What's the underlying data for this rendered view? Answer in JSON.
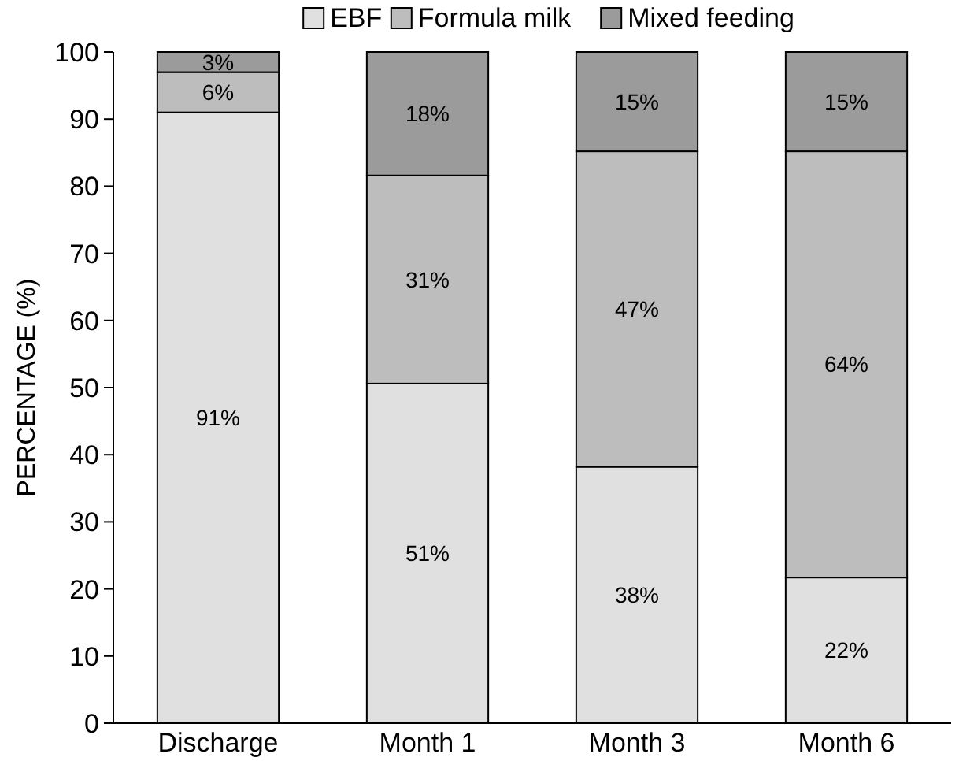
{
  "chart_data": {
    "type": "bar",
    "stacked": true,
    "ylabel": "PERCENTAGE (%)",
    "categories": [
      "Discharge",
      "Month 1",
      "Month 3",
      "Month 6"
    ],
    "ylim": [
      0,
      100
    ],
    "yticks": [
      0,
      10,
      20,
      30,
      40,
      50,
      60,
      70,
      80,
      90,
      100
    ],
    "grid": false,
    "legend": "top",
    "series": [
      {
        "name": "EBF",
        "color": "#e0e0e0",
        "values": [
          91,
          50.6,
          38.2,
          21.7
        ],
        "value_labels": [
          "91%",
          "51%",
          "38%",
          "22%"
        ]
      },
      {
        "name": "Formula milk",
        "color": "#bdbdbd",
        "values": [
          6,
          31,
          47,
          63.5
        ],
        "value_labels": [
          "6%",
          "31%",
          "47%",
          "64%"
        ]
      },
      {
        "name": "Mixed feeding",
        "color": "#9b9b9b",
        "values": [
          3,
          18.4,
          14.8,
          14.8
        ],
        "value_labels": [
          "3%",
          "18%",
          "15%",
          "15%"
        ]
      }
    ]
  }
}
